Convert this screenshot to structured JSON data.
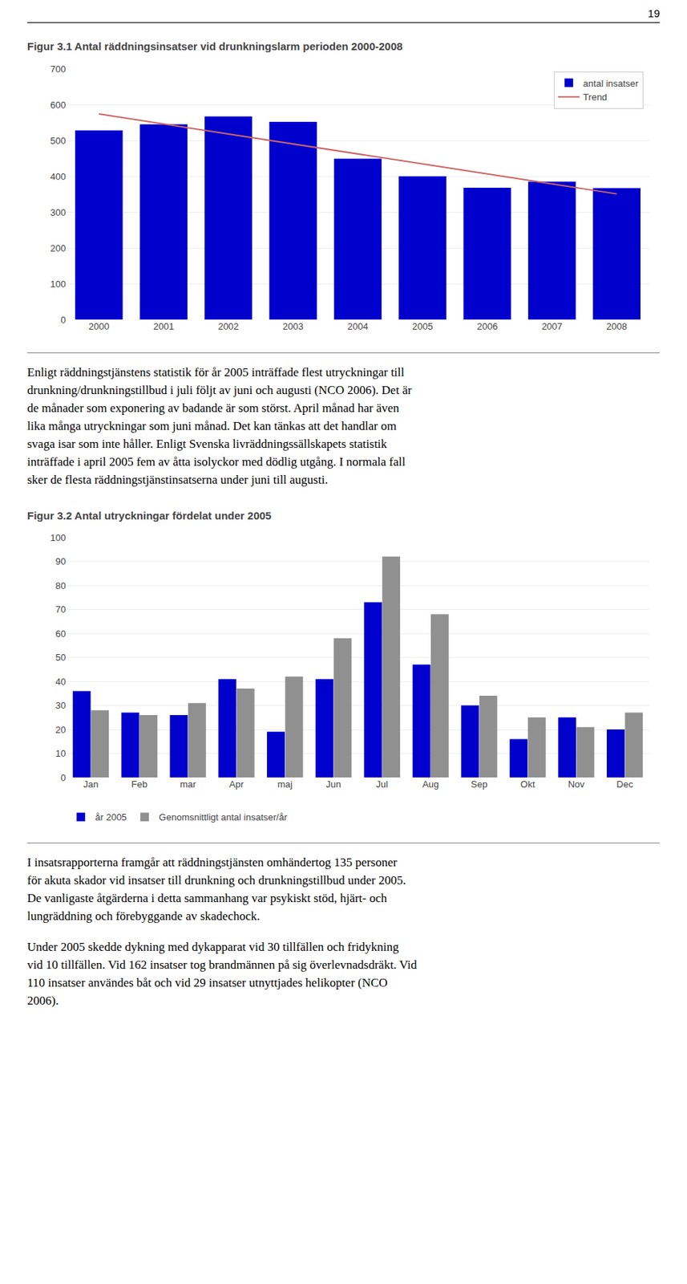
{
  "page_number": "19",
  "chart_data": [
    {
      "type": "bar",
      "title": "Figur 3.1 Antal räddningsinsatser vid drunkningslarm perioden 2000-2008",
      "categories": [
        "2000",
        "2001",
        "2002",
        "2003",
        "2004",
        "2005",
        "2006",
        "2007",
        "2008"
      ],
      "series": [
        {
          "name": "antal insatser",
          "color": "#0000CC",
          "values": [
            528,
            545,
            567,
            552,
            449,
            400,
            368,
            385,
            367
          ]
        },
        {
          "name": "Trend",
          "type": "line",
          "color": "#CC6666",
          "values": [
            573.9333,
            546.0333,
            518.1333,
            490.2333,
            462.3333,
            434.4333,
            406.5333,
            378.6333,
            350.7333
          ]
        }
      ],
      "ylim": [
        0,
        700
      ],
      "yticks": [
        0,
        100,
        200,
        300,
        400,
        500,
        600,
        700
      ],
      "grid": true,
      "legend": "upper right"
    },
    {
      "type": "bar",
      "title": "Figur 3.2 Antal utryckningar fördelat under 2005",
      "categories": [
        "Jan",
        "Feb",
        "mar",
        "Apr",
        "maj",
        "Jun",
        "Jul",
        "Aug",
        "Sep",
        "Okt",
        "Nov",
        "Dec"
      ],
      "series": [
        {
          "name": "år 2005",
          "color": "#0000CC",
          "values": [
            36,
            27,
            26,
            41,
            19,
            41,
            73,
            47,
            30,
            16,
            25,
            20
          ]
        },
        {
          "name": "Genomsnittligt antal insatser/år",
          "color": "#909090",
          "values": [
            28,
            26,
            31,
            37,
            42,
            58,
            92,
            68,
            34,
            25,
            21,
            27
          ]
        }
      ],
      "ylim": [
        0,
        100
      ],
      "yticks": [
        0,
        10,
        20,
        30,
        40,
        50,
        60,
        70,
        80,
        90,
        100
      ],
      "grid": true,
      "legend": "bottom"
    }
  ],
  "paragraphs": [
    [
      "Enligt räddningstjänstens statistik för år 2005 inträffade flest utryckningar till",
      "drunkning/drunkningstillbud i juli följt av juni och augusti (NCO 2006). Det är",
      "de månader som exponering av badande är som störst. April månad har även",
      "lika många utryckningar som juni månad. Det kan tänkas att det handlar om",
      "svaga isar som inte håller. Enligt Svenska livräddningssällskapets statistik",
      "inträffade i april 2005 fem av åtta isolyckor med dödlig utgång. I normala fall",
      "sker de flesta räddningstjänstinsatserna under juni till augusti."
    ],
    [
      "I insatsrapporterna framgår att räddningstjänsten omhändertog 135 personer",
      "för akuta skador vid insatser till drunkning och drunkningstillbud under 2005.",
      "De vanligaste åtgärderna i detta sammanhang var psykiskt stöd, hjärt- och",
      "lungräddning och förebyggande av skadechock."
    ],
    [
      "Under 2005 skedde dykning med dykapparat vid 30 tillfällen och fridykning",
      "vid 10 tillfällen. Vid 162 insatser tog brandmännen på sig överlevnadsdräkt. Vid",
      "110 insatser användes båt och vid 29 insatser utnyttjades helikopter (NCO",
      "2006)."
    ]
  ]
}
